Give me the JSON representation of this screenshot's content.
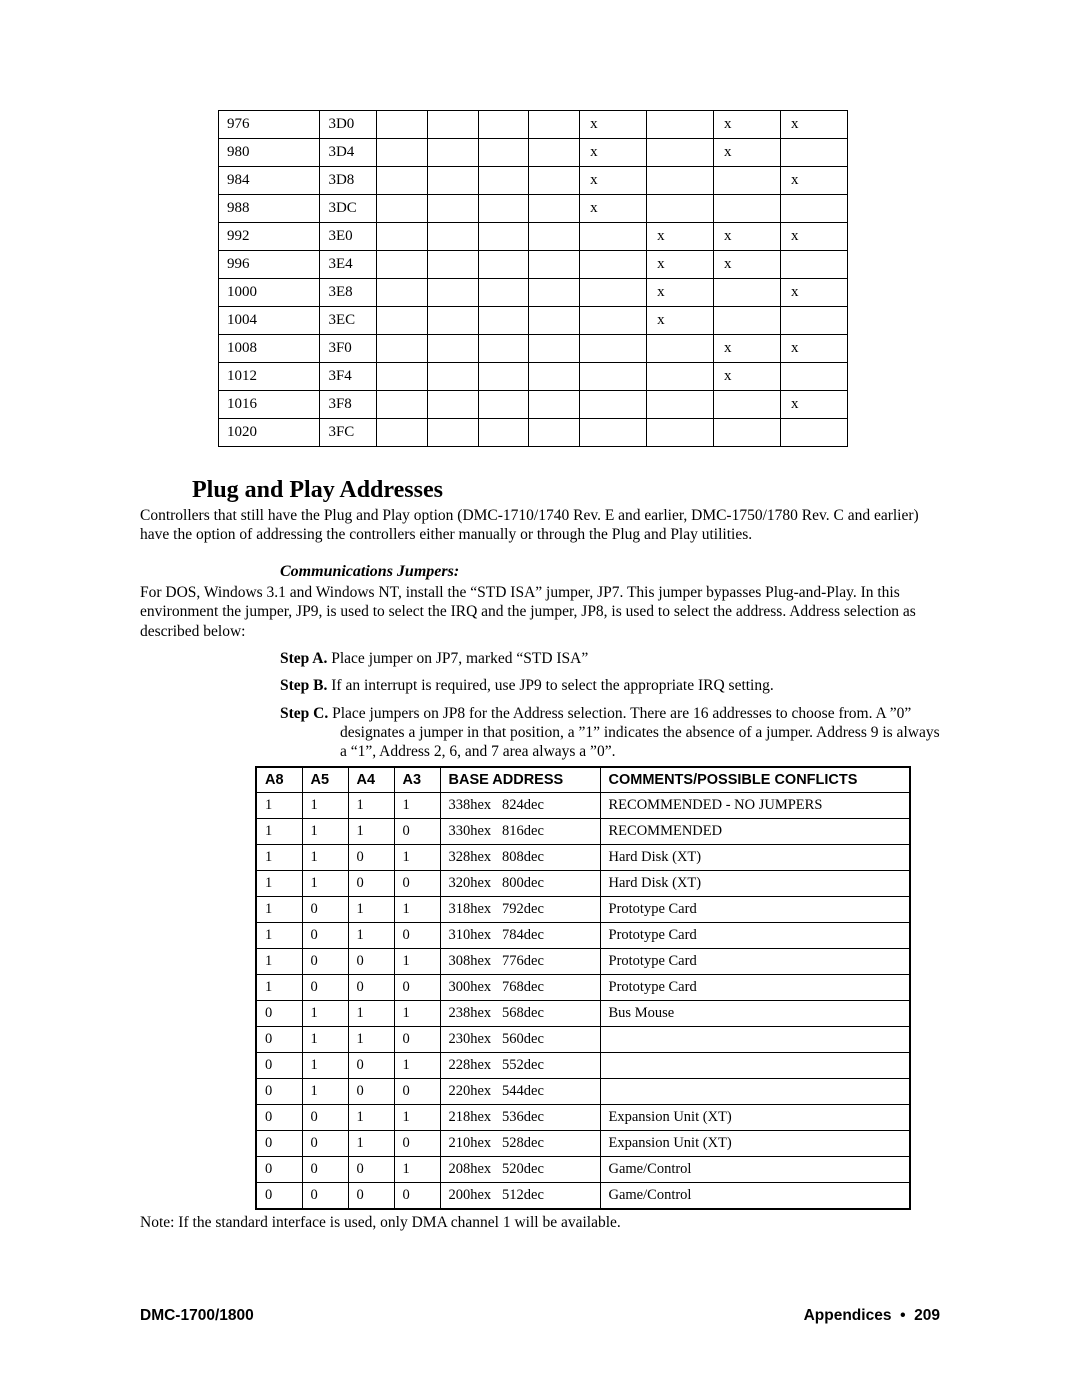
{
  "table1": {
    "rows": [
      {
        "dec": "976",
        "hex": "3D0",
        "cells": [
          "",
          "",
          "",
          "",
          "x",
          "",
          "x",
          "x"
        ]
      },
      {
        "dec": "980",
        "hex": "3D4",
        "cells": [
          "",
          "",
          "",
          "",
          "x",
          "",
          "x",
          ""
        ]
      },
      {
        "dec": "984",
        "hex": "3D8",
        "cells": [
          "",
          "",
          "",
          "",
          "x",
          "",
          "",
          "x"
        ]
      },
      {
        "dec": "988",
        "hex": "3DC",
        "cells": [
          "",
          "",
          "",
          "",
          "x",
          "",
          "",
          ""
        ]
      },
      {
        "dec": "992",
        "hex": "3E0",
        "cells": [
          "",
          "",
          "",
          "",
          "",
          "x",
          "x",
          "x"
        ]
      },
      {
        "dec": "996",
        "hex": "3E4",
        "cells": [
          "",
          "",
          "",
          "",
          "",
          "x",
          "x",
          ""
        ]
      },
      {
        "dec": "1000",
        "hex": "3E8",
        "cells": [
          "",
          "",
          "",
          "",
          "",
          "x",
          "",
          "x"
        ]
      },
      {
        "dec": "1004",
        "hex": "3EC",
        "cells": [
          "",
          "",
          "",
          "",
          "",
          "x",
          "",
          ""
        ]
      },
      {
        "dec": "1008",
        "hex": "3F0",
        "cells": [
          "",
          "",
          "",
          "",
          "",
          "",
          "x",
          "x"
        ]
      },
      {
        "dec": "1012",
        "hex": "3F4",
        "cells": [
          "",
          "",
          "",
          "",
          "",
          "",
          "x",
          ""
        ]
      },
      {
        "dec": "1016",
        "hex": "3F8",
        "cells": [
          "",
          "",
          "",
          "",
          "",
          "",
          "",
          "x"
        ]
      },
      {
        "dec": "1020",
        "hex": "3FC",
        "cells": [
          "",
          "",
          "",
          "",
          "",
          "",
          "",
          ""
        ]
      }
    ]
  },
  "heading": "Plug and Play Addresses",
  "intro": "Controllers that still have the Plug and Play option (DMC-1710/1740 Rev. E and earlier, DMC-1750/1780 Rev. C and earlier) have the option of addressing the controllers either manually or through the Plug and Play utilities.",
  "subhead": "Communications Jumpers:",
  "para2": "For DOS, Windows 3.1 and Windows NT, install the “STD ISA” jumper, JP7.  This jumper bypasses Plug-and-Play.  In this environment the jumper, JP9, is used to select the IRQ and the jumper, JP8, is used to select the address.  Address selection as described below:",
  "stepA_label": "Step A.",
  "stepA_text": " Place jumper on JP7, marked “STD ISA”",
  "stepB_label": "Step B.",
  "stepB_text": " If an interrupt is required, use JP9 to select the appropriate IRQ setting.",
  "stepC_label": "Step C.",
  "stepC_text": " Place jumpers on JP8 for the Address selection.  There are 16 addresses to choose from.  A ”0” designates a jumper in that position, a ”1” indicates the absence of a jumper.  Address 9 is always a “1”, Address 2, 6, and 7 area always a ”0”.",
  "table2": {
    "headers": [
      "A8",
      "A5",
      "A4",
      "A3",
      "BASE ADDRESS",
      "COMMENTS/POSSIBLE CONFLICTS"
    ],
    "rows": [
      {
        "a8": "1",
        "a5": "1",
        "a4": "1",
        "a3": "1",
        "base": "338hex   824dec",
        "comment": "RECOMMENDED - NO JUMPERS"
      },
      {
        "a8": "1",
        "a5": "1",
        "a4": "1",
        "a3": "0",
        "base": "330hex   816dec",
        "comment": "RECOMMENDED"
      },
      {
        "a8": "1",
        "a5": "1",
        "a4": "0",
        "a3": "1",
        "base": "328hex   808dec",
        "comment": "Hard Disk (XT)"
      },
      {
        "a8": "1",
        "a5": "1",
        "a4": "0",
        "a3": "0",
        "base": "320hex   800dec",
        "comment": "Hard Disk (XT)"
      },
      {
        "a8": "1",
        "a5": "0",
        "a4": "1",
        "a3": "1",
        "base": "318hex   792dec",
        "comment": "Prototype Card"
      },
      {
        "a8": "1",
        "a5": "0",
        "a4": "1",
        "a3": "0",
        "base": "310hex   784dec",
        "comment": "Prototype Card"
      },
      {
        "a8": "1",
        "a5": "0",
        "a4": "0",
        "a3": "1",
        "base": "308hex   776dec",
        "comment": "Prototype Card"
      },
      {
        "a8": "1",
        "a5": "0",
        "a4": "0",
        "a3": "0",
        "base": "300hex   768dec",
        "comment": "Prototype Card"
      },
      {
        "a8": "0",
        "a5": "1",
        "a4": "1",
        "a3": "1",
        "base": "238hex   568dec",
        "comment": "Bus Mouse"
      },
      {
        "a8": "0",
        "a5": "1",
        "a4": "1",
        "a3": "0",
        "base": "230hex   560dec",
        "comment": ""
      },
      {
        "a8": "0",
        "a5": "1",
        "a4": "0",
        "a3": "1",
        "base": "228hex   552dec",
        "comment": ""
      },
      {
        "a8": "0",
        "a5": "1",
        "a4": "0",
        "a3": "0",
        "base": "220hex   544dec",
        "comment": ""
      },
      {
        "a8": "0",
        "a5": "0",
        "a4": "1",
        "a3": "1",
        "base": "218hex   536dec",
        "comment": "Expansion Unit (XT)"
      },
      {
        "a8": "0",
        "a5": "0",
        "a4": "1",
        "a3": "0",
        "base": "210hex   528dec",
        "comment": "Expansion Unit (XT)"
      },
      {
        "a8": "0",
        "a5": "0",
        "a4": "0",
        "a3": "1",
        "base": "208hex   520dec",
        "comment": "Game/Control"
      },
      {
        "a8": "0",
        "a5": "0",
        "a4": "0",
        "a3": "0",
        "base": "200hex   512dec",
        "comment": "Game/Control"
      }
    ]
  },
  "note": "Note: If the standard interface is used, only DMA channel 1 will be available.",
  "footer_left": "DMC-1700/1800",
  "footer_right_label": "Appendices",
  "footer_right_page": "209"
}
